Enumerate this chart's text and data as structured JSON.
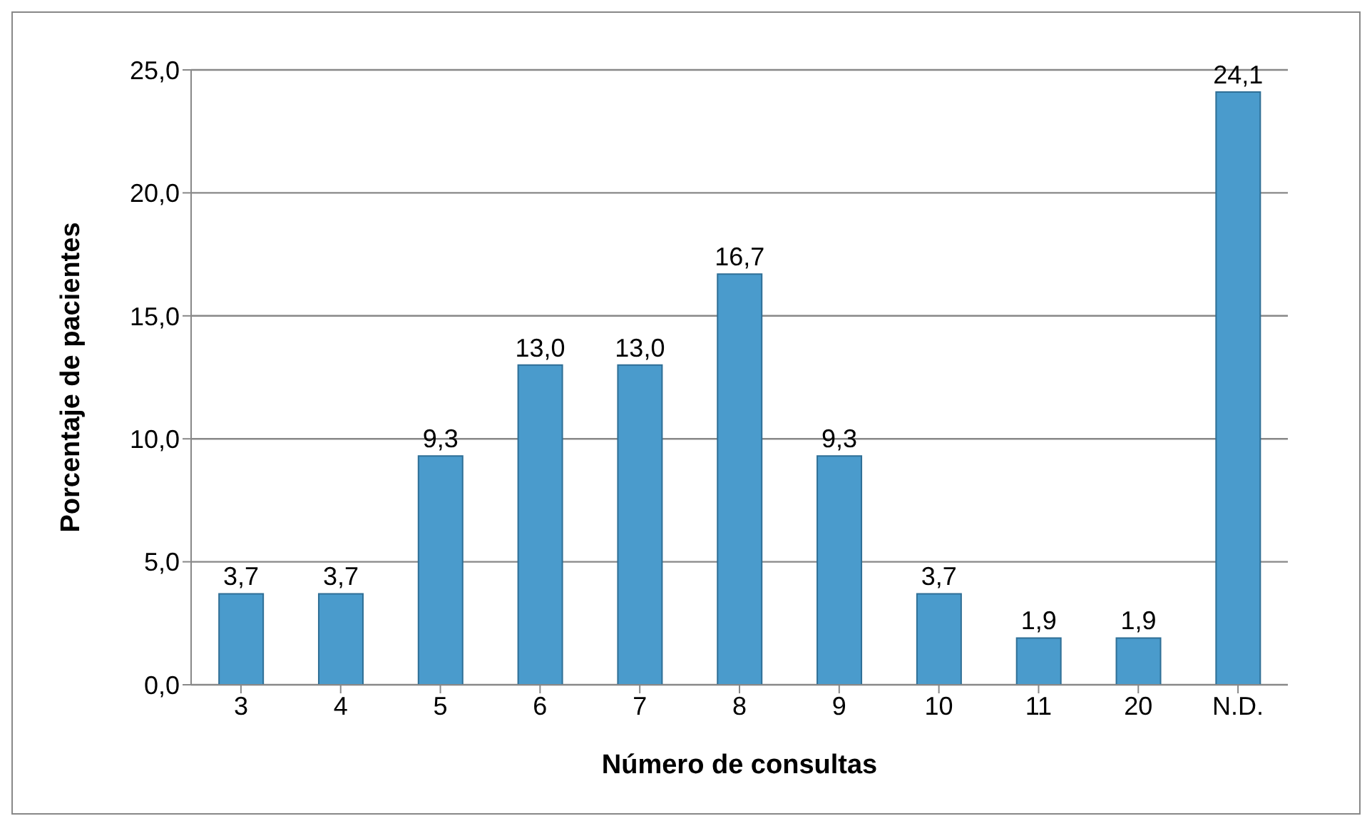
{
  "chart_data": {
    "type": "bar",
    "xlabel": "Número de consultas",
    "ylabel": "Porcentaje de pacientes",
    "categories": [
      "3",
      "4",
      "5",
      "6",
      "7",
      "8",
      "9",
      "10",
      "11",
      "20",
      "N.D."
    ],
    "values": [
      3.7,
      3.7,
      9.3,
      13.0,
      13.0,
      16.7,
      9.3,
      3.7,
      1.9,
      1.9,
      24.1
    ],
    "value_labels": [
      "3,7",
      "3,7",
      "9,3",
      "13,0",
      "13,0",
      "16,7",
      "9,3",
      "3,7",
      "1,9",
      "1,9",
      "24,1"
    ],
    "color": "#4a9bcc",
    "ylim": [
      0,
      25
    ],
    "yticks": [
      {
        "value": 0,
        "label": "0,0"
      },
      {
        "value": 5,
        "label": "5,0"
      },
      {
        "value": 10,
        "label": "10,0"
      },
      {
        "value": 15,
        "label": "15,0"
      },
      {
        "value": 20,
        "label": "20,0"
      },
      {
        "value": 25,
        "label": "25,0"
      }
    ],
    "grid": "y",
    "legend": false
  }
}
